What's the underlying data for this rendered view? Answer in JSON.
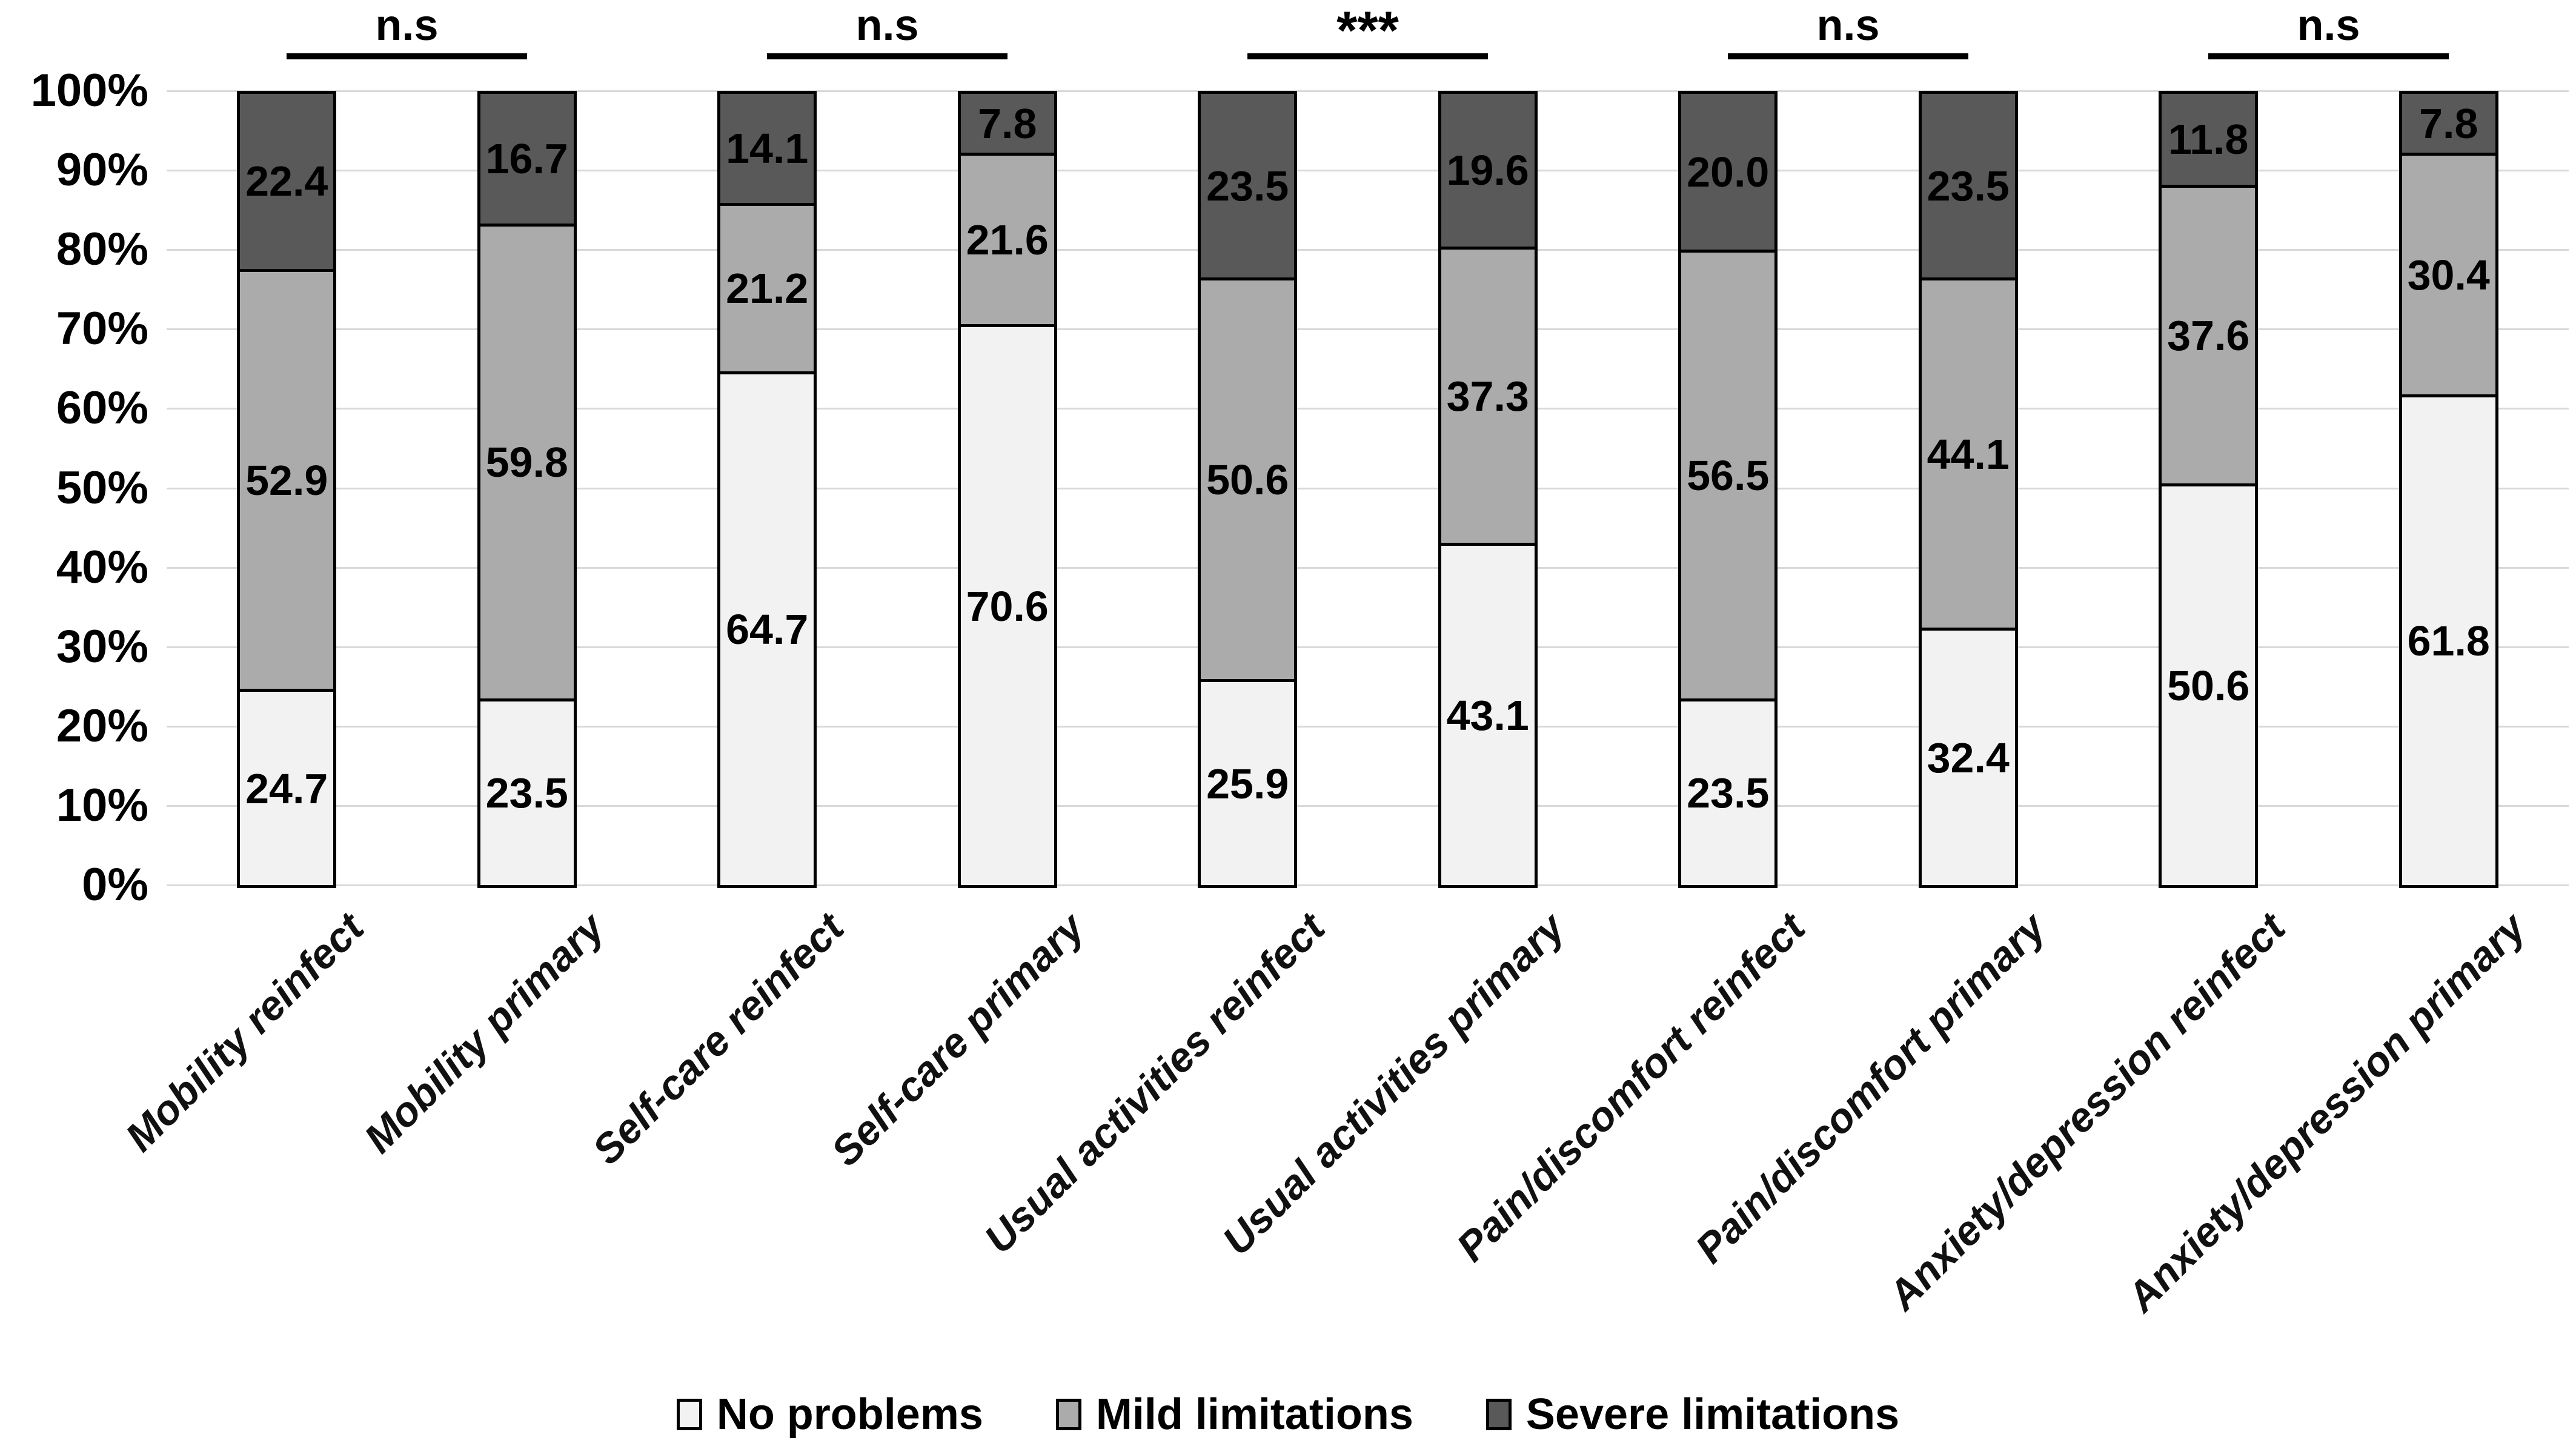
{
  "figure": {
    "background": "#ffffff",
    "grid_color": "#d9d9d9",
    "bar_border_color": "#000000",
    "text_color": "#000000"
  },
  "y_axis": {
    "tick_labels": [
      "0%",
      "10%",
      "20%",
      "30%",
      "40%",
      "50%",
      "60%",
      "70%",
      "80%",
      "90%",
      "100%"
    ],
    "min": 0,
    "max": 100,
    "step": 10
  },
  "chart_data": {
    "type": "bar",
    "stacked": true,
    "percent_stacked": true,
    "title": "",
    "xlabel": "",
    "ylabel": "",
    "ylim": [
      0,
      100
    ],
    "grid": true,
    "legend_position": "bottom",
    "categories": [
      "Mobility reinfect",
      "Mobility primary",
      "Self-care reinfect",
      "Self-care primary",
      "Usual activities reinfect",
      "Usual activities primary",
      "Pain/discomfort reinfect",
      "Pain/discomfort primary",
      "Anxiety/depression reinfect",
      "Anxiety/depression primary"
    ],
    "series": [
      {
        "name": "No problems",
        "color": "#f2f2f2",
        "values": [
          24.7,
          23.5,
          64.7,
          70.6,
          25.9,
          43.1,
          23.5,
          32.4,
          50.6,
          61.8
        ]
      },
      {
        "name": "Mild limitations",
        "color": "#ababab",
        "values": [
          52.9,
          59.8,
          21.2,
          21.6,
          50.6,
          37.3,
          56.5,
          44.1,
          37.6,
          30.4
        ]
      },
      {
        "name": "Severe limitations",
        "color": "#595959",
        "values": [
          22.4,
          16.7,
          14.1,
          7.8,
          23.5,
          19.6,
          20.0,
          23.5,
          11.8,
          7.8
        ]
      }
    ],
    "significance": [
      {
        "label": "n.s",
        "between": [
          0,
          1
        ]
      },
      {
        "label": "n.s",
        "between": [
          2,
          3
        ]
      },
      {
        "label": "***",
        "between": [
          4,
          5
        ]
      },
      {
        "label": "n.s",
        "between": [
          6,
          7
        ]
      },
      {
        "label": "n.s",
        "between": [
          8,
          9
        ]
      }
    ]
  }
}
